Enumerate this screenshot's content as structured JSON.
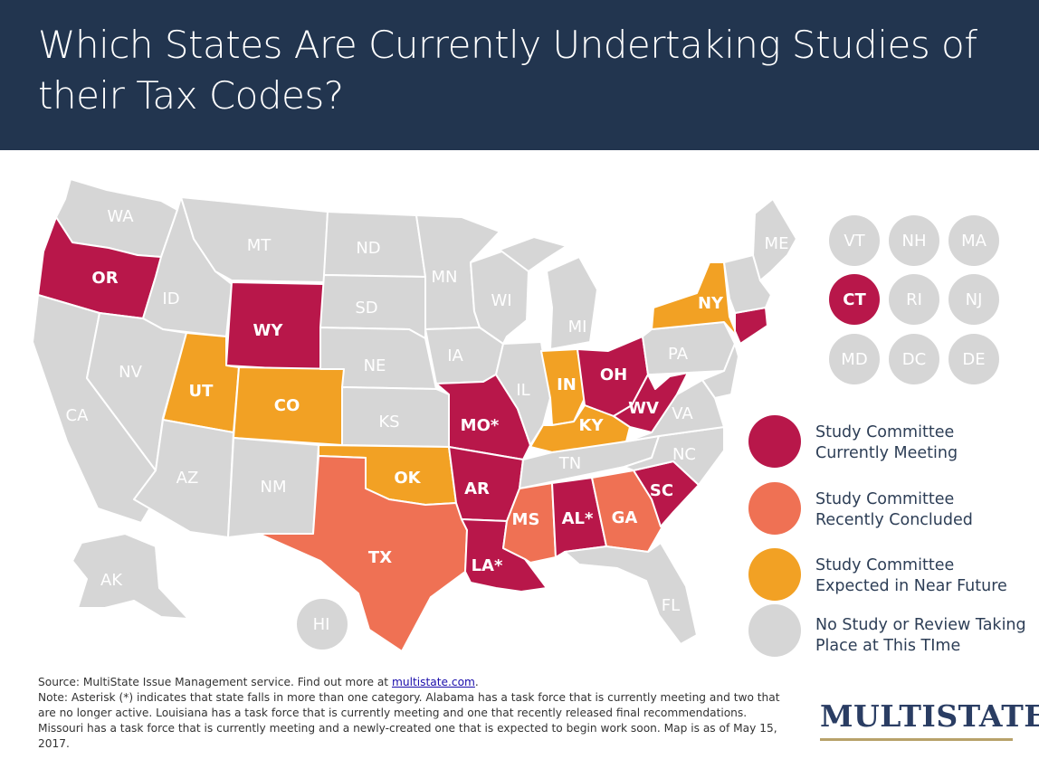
{
  "title": "Which States Are Currently Undertaking Studies of their Tax Codes?",
  "colors": {
    "header": "#22354f",
    "meeting": "#b8174a",
    "concluded": "#ef7154",
    "expected": "#f2a124",
    "none": "#d6d6d6"
  },
  "states": {
    "WA": "WA",
    "OR": "OR",
    "CA": "CA",
    "ID": "ID",
    "NV": "NV",
    "MT": "MT",
    "WY": "WY",
    "UT": "UT",
    "AZ": "AZ",
    "CO": "CO",
    "NM": "NM",
    "ND": "ND",
    "SD": "SD",
    "NE": "NE",
    "KS": "KS",
    "OK": "OK",
    "TX": "TX",
    "MN": "MN",
    "IA": "IA",
    "MO": "MO*",
    "AR": "AR",
    "LA": "LA*",
    "WI": "WI",
    "IL": "IL",
    "MI": "MI",
    "IN": "IN",
    "OH": "OH",
    "KY": "KY",
    "TN": "TN",
    "MS": "MS",
    "AL": "AL*",
    "GA": "GA",
    "FL": "FL",
    "SC": "SC",
    "NC": "NC",
    "VA": "VA",
    "WV": "WV",
    "PA": "PA",
    "NY": "NY",
    "ME": "ME",
    "AK": "AK",
    "HI": "HI"
  },
  "small_states": [
    "VT",
    "NH",
    "MA",
    "CT",
    "RI",
    "NJ",
    "MD",
    "DC",
    "DE"
  ],
  "legend": [
    {
      "line1": "Study Committee",
      "line2": "Currently Meeting",
      "color": "#b8174a"
    },
    {
      "line1": "Study Committee",
      "line2": "Recently Concluded",
      "color": "#ef7154"
    },
    {
      "line1": "Study Committee",
      "line2": "Expected in Near Future",
      "color": "#f2a124"
    },
    {
      "line1": "No Study or Review Taking",
      "line2": "Place at This TIme",
      "color": "#d6d6d6"
    }
  ],
  "footer": {
    "source_prefix": "Source: MultiState Issue Management service. Find out more at ",
    "source_link": "multistate.com",
    "source_suffix": ".",
    "note": "Note: Asterisk (*) indicates that state falls in more than one category. Alabama has a task force that is currently meeting and two that are no longer active. Louisiana has a task force that is currently meeting and one that recently released final recommendations. Missouri has a task force that is currently meeting and a newly-created one that is expected to begin work soon. Map is as of May 15, 2017."
  },
  "logo": "MULTISTATE"
}
